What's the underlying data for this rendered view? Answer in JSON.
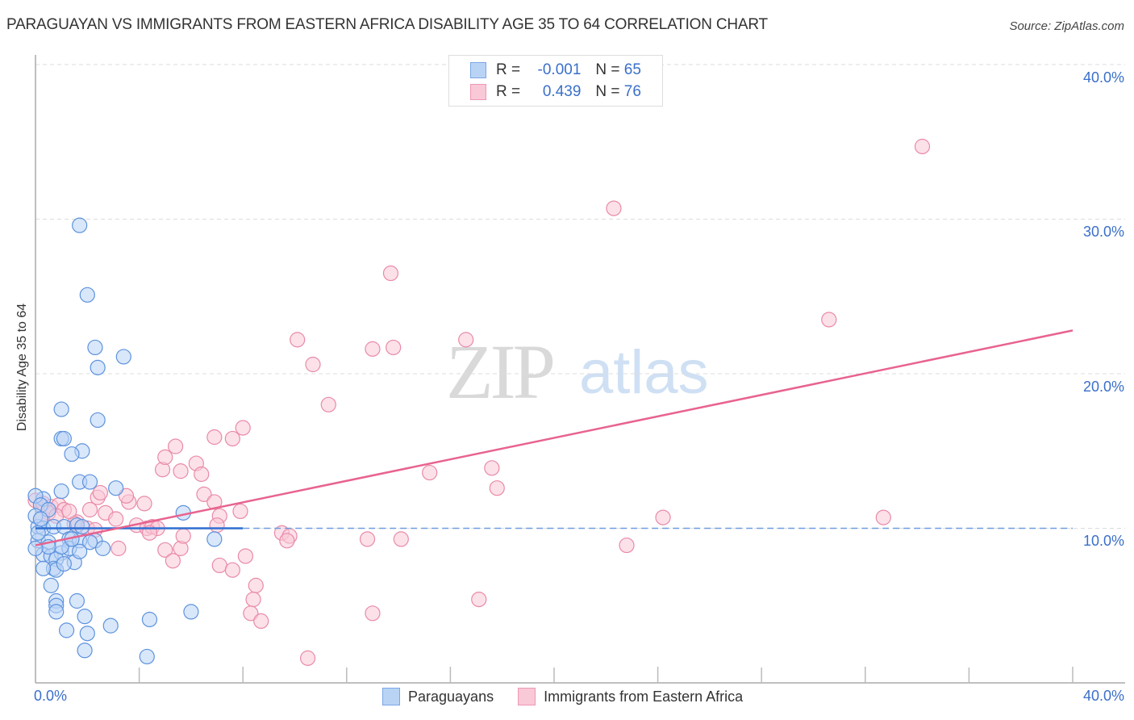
{
  "header": {
    "title": "PARAGUAYAN VS IMMIGRANTS FROM EASTERN AFRICA DISABILITY AGE 35 TO 64 CORRELATION CHART",
    "source": "Source: ZipAtlas.com"
  },
  "watermark": {
    "zip": "ZIP",
    "atlas": "atlas"
  },
  "legend_top": {
    "rows": [
      {
        "r_label": "R =",
        "r_value": "-0.001",
        "n_label": "N =",
        "n_value": "65",
        "color": "#b9d3f5",
        "border": "#7aa7e6"
      },
      {
        "r_label": "R =",
        "r_value": "0.439",
        "n_label": "N =",
        "n_value": "76",
        "color": "#f9c9d7",
        "border": "#ee98b3"
      }
    ]
  },
  "legend_bottom": {
    "items": [
      {
        "label": "Paraguayans",
        "color": "#b9d3f5",
        "border": "#7aa7e6"
      },
      {
        "label": "Immigrants from Eastern Africa",
        "color": "#f9c9d7",
        "border": "#ee98b3"
      }
    ]
  },
  "axes": {
    "ylabel": "Disability Age 35 to 64",
    "y_ticks": [
      "40.0%",
      "30.0%",
      "20.0%",
      "10.0%"
    ],
    "x_ticks": [
      "0.0%",
      "40.0%"
    ]
  },
  "colors": {
    "blue": "#3a7bd5",
    "pink": "#e8638f",
    "tick_text": "#3a6fc9"
  },
  "chart_data": {
    "type": "scatter",
    "title": "PARAGUAYAN VS IMMIGRANTS FROM EASTERN AFRICA DISABILITY AGE 35 TO 64 CORRELATION CHART",
    "xlabel": "",
    "ylabel": "Disability Age 35 to 64",
    "xlim": [
      0,
      40
    ],
    "ylim": [
      0,
      40
    ],
    "grid": true,
    "legend_position": "bottom",
    "series": [
      {
        "name": "Paraguayans",
        "R": -0.001,
        "N": 65,
        "trend": {
          "x": [
            0,
            8
          ],
          "y": [
            10.0,
            10.0
          ],
          "extended_dashed_to": 40
        },
        "points": [
          [
            1.7,
            29.6
          ],
          [
            2.0,
            25.1
          ],
          [
            2.3,
            21.7
          ],
          [
            2.4,
            20.4
          ],
          [
            3.4,
            21.1
          ],
          [
            1.0,
            17.7
          ],
          [
            2.4,
            17.0
          ],
          [
            1.0,
            15.8
          ],
          [
            1.1,
            15.8
          ],
          [
            1.8,
            15.0
          ],
          [
            1.4,
            14.8
          ],
          [
            1.7,
            13.0
          ],
          [
            2.1,
            13.0
          ],
          [
            3.1,
            12.6
          ],
          [
            5.7,
            11.0
          ],
          [
            1.0,
            12.4
          ],
          [
            0.3,
            11.9
          ],
          [
            0.0,
            12.1
          ],
          [
            0.1,
            10.1
          ],
          [
            0.3,
            10.0
          ],
          [
            0.7,
            10.1
          ],
          [
            1.1,
            10.1
          ],
          [
            1.6,
            10.2
          ],
          [
            1.8,
            10.1
          ],
          [
            1.3,
            9.3
          ],
          [
            2.3,
            9.2
          ],
          [
            6.9,
            9.3
          ],
          [
            2.6,
            8.7
          ],
          [
            0.1,
            9.2
          ],
          [
            0.5,
            9.1
          ],
          [
            0.3,
            8.3
          ],
          [
            0.6,
            8.2
          ],
          [
            1.0,
            8.4
          ],
          [
            1.3,
            8.7
          ],
          [
            1.5,
            7.8
          ],
          [
            0.8,
            8.0
          ],
          [
            0.7,
            7.4
          ],
          [
            0.8,
            7.3
          ],
          [
            0.3,
            7.4
          ],
          [
            0.6,
            6.3
          ],
          [
            1.6,
            5.3
          ],
          [
            0.8,
            5.3
          ],
          [
            0.8,
            5.0
          ],
          [
            0.8,
            4.6
          ],
          [
            1.9,
            4.3
          ],
          [
            4.4,
            4.1
          ],
          [
            6.0,
            4.6
          ],
          [
            2.9,
            3.7
          ],
          [
            1.2,
            3.4
          ],
          [
            2.0,
            3.2
          ],
          [
            1.9,
            2.1
          ],
          [
            4.3,
            1.7
          ],
          [
            0.2,
            11.5
          ],
          [
            0.5,
            11.2
          ],
          [
            0.0,
            10.8
          ],
          [
            0.1,
            9.7
          ],
          [
            1.0,
            8.8
          ],
          [
            1.7,
            9.2
          ],
          [
            2.1,
            9.1
          ],
          [
            0.5,
            8.8
          ],
          [
            0.0,
            8.7
          ],
          [
            0.2,
            10.6
          ],
          [
            1.4,
            9.3
          ],
          [
            1.7,
            8.5
          ],
          [
            1.1,
            7.7
          ]
        ]
      },
      {
        "name": "Immigrants from Eastern Africa",
        "R": 0.439,
        "N": 76,
        "trend": {
          "x": [
            0,
            40
          ],
          "y": [
            8.9,
            22.8
          ]
        },
        "points": [
          [
            0.0,
            11.8
          ],
          [
            0.3,
            11.6
          ],
          [
            0.6,
            11.4
          ],
          [
            0.9,
            11.5
          ],
          [
            1.1,
            11.2
          ],
          [
            0.5,
            11.0
          ],
          [
            0.2,
            10.6
          ],
          [
            1.6,
            10.4
          ],
          [
            2.1,
            11.2
          ],
          [
            2.7,
            11.0
          ],
          [
            3.1,
            10.6
          ],
          [
            2.4,
            12.0
          ],
          [
            2.5,
            12.3
          ],
          [
            3.6,
            11.7
          ],
          [
            3.5,
            12.1
          ],
          [
            4.2,
            11.6
          ],
          [
            3.9,
            10.2
          ],
          [
            4.3,
            10.0
          ],
          [
            4.5,
            10.1
          ],
          [
            4.7,
            10.0
          ],
          [
            4.4,
            9.7
          ],
          [
            2.0,
            10.0
          ],
          [
            1.5,
            10.3
          ],
          [
            3.2,
            8.7
          ],
          [
            5.0,
            8.6
          ],
          [
            5.3,
            7.9
          ],
          [
            5.6,
            8.7
          ],
          [
            5.7,
            9.5
          ],
          [
            4.9,
            13.8
          ],
          [
            5.4,
            15.3
          ],
          [
            6.2,
            14.2
          ],
          [
            6.4,
            13.5
          ],
          [
            5.0,
            14.6
          ],
          [
            5.6,
            13.7
          ],
          [
            6.5,
            12.2
          ],
          [
            6.9,
            11.7
          ],
          [
            7.1,
            10.8
          ],
          [
            6.9,
            15.9
          ],
          [
            7.6,
            15.8
          ],
          [
            8.0,
            16.5
          ],
          [
            7.9,
            11.1
          ],
          [
            7.0,
            10.2
          ],
          [
            7.1,
            7.6
          ],
          [
            7.6,
            7.3
          ],
          [
            8.1,
            8.2
          ],
          [
            8.5,
            6.3
          ],
          [
            8.4,
            5.4
          ],
          [
            8.3,
            4.5
          ],
          [
            8.7,
            4.0
          ],
          [
            9.5,
            9.7
          ],
          [
            9.8,
            9.5
          ],
          [
            9.7,
            9.2
          ],
          [
            10.5,
            1.6
          ],
          [
            10.1,
            22.2
          ],
          [
            10.7,
            20.6
          ],
          [
            11.3,
            18.0
          ],
          [
            13.0,
            21.6
          ],
          [
            13.8,
            21.7
          ],
          [
            13.7,
            26.5
          ],
          [
            16.6,
            22.2
          ],
          [
            15.2,
            13.6
          ],
          [
            17.6,
            13.9
          ],
          [
            17.8,
            12.6
          ],
          [
            12.8,
            9.3
          ],
          [
            14.1,
            9.3
          ],
          [
            13.0,
            4.5
          ],
          [
            17.1,
            5.4
          ],
          [
            22.3,
            30.7
          ],
          [
            22.8,
            8.9
          ],
          [
            24.2,
            10.7
          ],
          [
            30.6,
            23.5
          ],
          [
            32.7,
            10.7
          ],
          [
            34.2,
            34.7
          ],
          [
            0.8,
            10.8
          ],
          [
            1.3,
            11.1
          ],
          [
            2.3,
            9.9
          ]
        ]
      }
    ]
  }
}
